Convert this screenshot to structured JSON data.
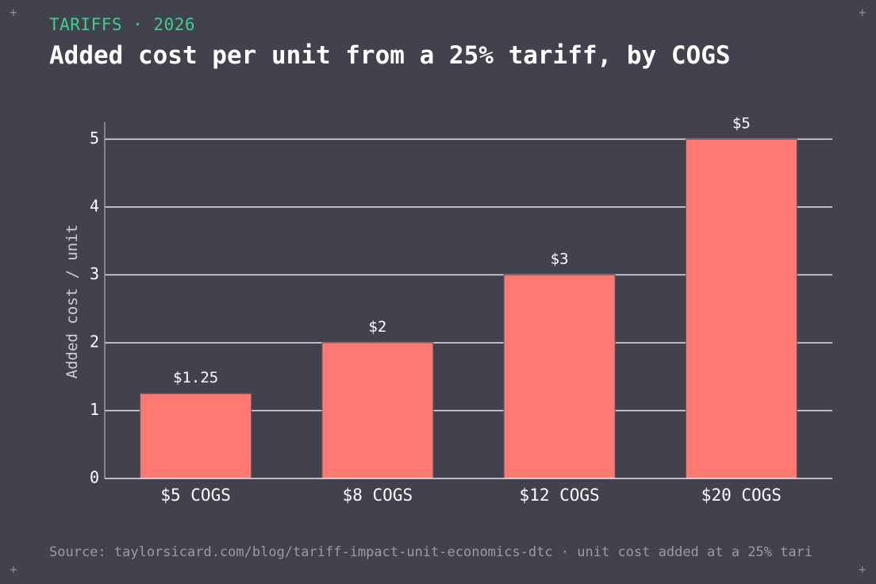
{
  "header": {
    "kicker": "TARIFFS · 2026",
    "title": "Added cost per unit from a 25% tariff, by COGS"
  },
  "footer": {
    "source": "Source: taylorsicard.com/blog/tariff-impact-unit-economics-dtc · unit cost added at a 25% tari"
  },
  "corners": [
    "+",
    "+",
    "+",
    "+"
  ],
  "colors": {
    "background": "#42414e",
    "bar": "#ff7872",
    "kicker": "#3ecf8e",
    "text": "#ffffff",
    "grid": "#e6e6ea",
    "axis_label": "#cfcfd6"
  },
  "chart_data": {
    "type": "bar",
    "categories": [
      "$5 COGS",
      "$8 COGS",
      "$12 COGS",
      "$20 COGS"
    ],
    "values": [
      1.25,
      2,
      3,
      5
    ],
    "data_labels": [
      "$1.25",
      "$2",
      "$3",
      "$5"
    ],
    "ylabel": "Added cost / unit",
    "xlabel": "",
    "ylim": [
      0,
      5.25
    ],
    "yticks": [
      0,
      1,
      2,
      3,
      4,
      5
    ],
    "grid": true
  }
}
